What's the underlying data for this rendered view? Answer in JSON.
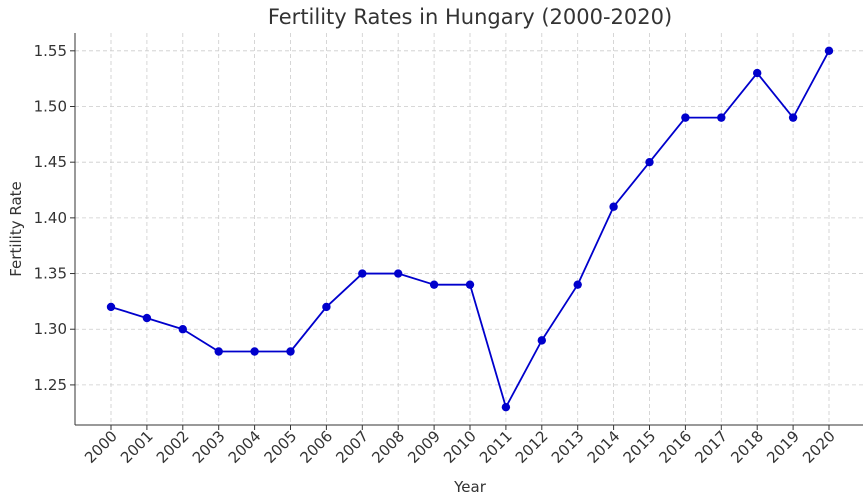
{
  "chart_data": {
    "type": "line",
    "title": "Fertility Rates in Hungary (2000-2020)",
    "xlabel": "Year",
    "ylabel": "Fertility Rate",
    "x": [
      "2000",
      "2001",
      "2002",
      "2003",
      "2004",
      "2005",
      "2006",
      "2007",
      "2008",
      "2009",
      "2010",
      "2011",
      "2012",
      "2013",
      "2014",
      "2015",
      "2016",
      "2017",
      "2018",
      "2019",
      "2020"
    ],
    "series": [
      {
        "values": [
          1.32,
          1.31,
          1.3,
          1.28,
          1.28,
          1.28,
          1.32,
          1.35,
          1.35,
          1.34,
          1.34,
          1.23,
          1.29,
          1.34,
          1.41,
          1.45,
          1.49,
          1.49,
          1.53,
          1.49,
          1.55
        ],
        "color": "#0000cc"
      }
    ],
    "yticks": [
      "1.25",
      "1.30",
      "1.35",
      "1.40",
      "1.45",
      "1.50",
      "1.55"
    ],
    "ylim": [
      1.214,
      1.566
    ],
    "grid": true,
    "marker": "circle"
  }
}
